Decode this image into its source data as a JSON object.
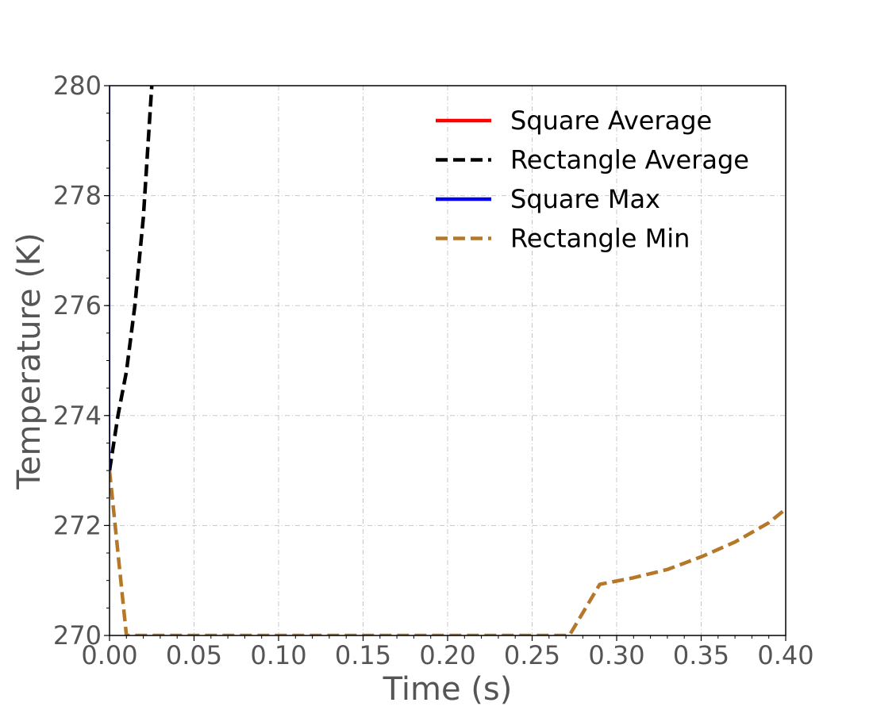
{
  "chart_data": {
    "type": "line",
    "title": "",
    "xlabel": "Time (s)",
    "ylabel": "Temperature (K)",
    "xlim": [
      0.0,
      0.4
    ],
    "ylim": [
      270,
      280
    ],
    "x_ticks": [
      "0.00",
      "0.05",
      "0.10",
      "0.15",
      "0.20",
      "0.25",
      "0.30",
      "0.35",
      "0.40"
    ],
    "y_ticks": [
      "270",
      "272",
      "274",
      "276",
      "278",
      "280"
    ],
    "grid": true,
    "legend_position": "top-right",
    "series": [
      {
        "name": "Square Average",
        "color": "#ff0000",
        "style": "solid",
        "x": [
          0.0,
          0.0
        ],
        "y": [
          273.0,
          280.0
        ]
      },
      {
        "name": "Rectangle Average",
        "color": "#000000",
        "style": "dashed",
        "x": [
          0.0,
          0.005,
          0.01,
          0.015,
          0.02,
          0.025
        ],
        "y": [
          273.0,
          274.0,
          274.8,
          276.0,
          277.6,
          280.0
        ]
      },
      {
        "name": "Square Max",
        "color": "#0000ee",
        "style": "solid",
        "x": [
          0.0,
          0.0
        ],
        "y": [
          273.0,
          280.0
        ]
      },
      {
        "name": "Rectangle Min",
        "color": "#b5782a",
        "style": "dashed",
        "x": [
          0.0,
          0.01,
          0.272,
          0.29,
          0.31,
          0.33,
          0.35,
          0.37,
          0.39,
          0.4
        ],
        "y": [
          273.0,
          270.0,
          270.0,
          270.93,
          271.05,
          271.2,
          271.43,
          271.7,
          272.05,
          272.3
        ]
      }
    ]
  }
}
